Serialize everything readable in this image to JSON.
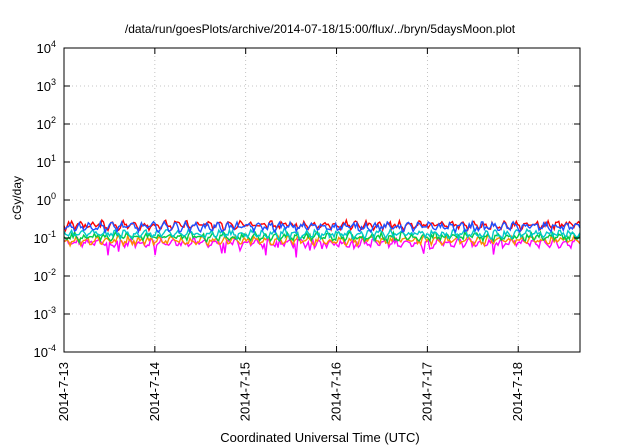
{
  "chart_data": {
    "type": "line",
    "title": "/data/run/goesPlots/archive/2014-07-18/15:00/flux/../bryn/5daysMoon.plot",
    "xlabel": "Coordinated Universal Time (UTC)",
    "ylabel": "cGy/day",
    "yscale": "log",
    "ylim": [
      0.0001,
      10000
    ],
    "xlim_days": [
      0,
      5.68
    ],
    "x_start": "2014-7-13",
    "x_tick_labels": [
      "2014-7-13",
      "2014-7-14",
      "2014-7-15",
      "2014-7-16",
      "2014-7-17",
      "2014-7-18"
    ],
    "y_tick_labels": [
      {
        "base": "10",
        "exp": "4"
      },
      {
        "base": "10",
        "exp": "3"
      },
      {
        "base": "10",
        "exp": "2"
      },
      {
        "base": "10",
        "exp": "1"
      },
      {
        "base": "10",
        "exp": "0"
      },
      {
        "base": "10",
        "exp": "-1"
      },
      {
        "base": "10",
        "exp": "-2"
      },
      {
        "base": "10",
        "exp": "-3"
      },
      {
        "base": "10",
        "exp": "-4"
      }
    ],
    "grid": true,
    "series": [
      {
        "color": "#ff00ff",
        "mean": 0.075,
        "dip_low": 0.028
      },
      {
        "color": "#ff8c00",
        "mean": 0.088
      },
      {
        "color": "#00cc44",
        "mean": 0.11
      },
      {
        "color": "#00c8c8",
        "mean": 0.13
      },
      {
        "color": "#ff0000",
        "mean": 0.22
      },
      {
        "color": "#1e50ff",
        "mean": 0.2
      }
    ]
  }
}
